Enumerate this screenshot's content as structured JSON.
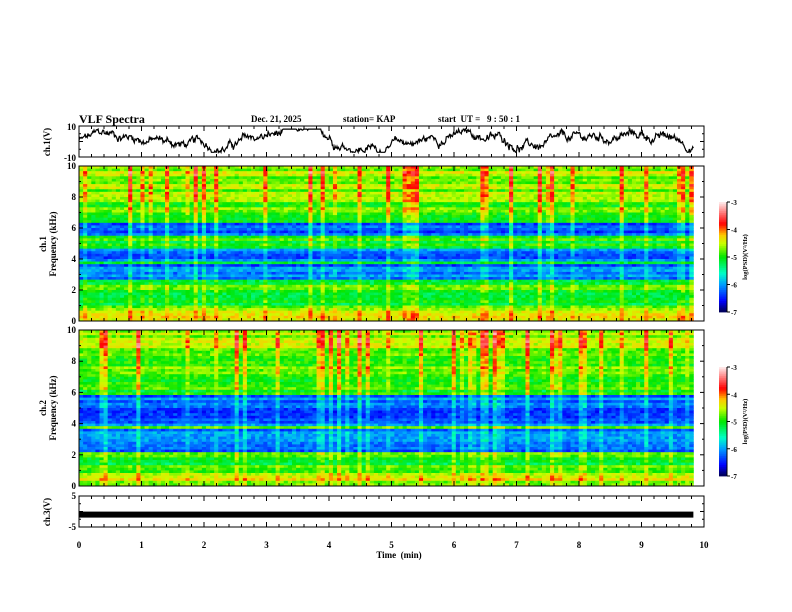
{
  "header": {
    "title": "VLF Spectra",
    "date": "Dec. 21, 2025",
    "station": "station= KAP",
    "start_ut": "start  UT =   9 : 50 : 1"
  },
  "chart_data": [
    {
      "type": "line",
      "name": "ch1-voltage",
      "ylabel": "ch.1(V)",
      "ylim": [
        -10,
        10
      ],
      "yticks": [
        "10",
        "-10"
      ],
      "xlim": [
        0,
        10
      ],
      "trace_end_min": 9.83,
      "trace_mean_v": 0.5,
      "trace_range_v": [
        -7,
        8
      ]
    },
    {
      "type": "heatmap",
      "name": "ch1-spectrogram",
      "channel_label": "ch.1",
      "ylabel": "Frequency  (kHz)",
      "ylim": [
        0,
        10
      ],
      "yticks": [
        "0",
        "2",
        "4",
        "6",
        "8",
        "10"
      ],
      "xlim": [
        0,
        10
      ],
      "data_end_min": 9.83,
      "colorbar": {
        "label": "log(PSD)(V²/Hz)",
        "range": [
          -7,
          -3
        ],
        "ticks": [
          "-3",
          "-4",
          "-5",
          "-6",
          "-7"
        ]
      },
      "low_power_bands_khz": [
        [
          2.6,
          3.6
        ],
        [
          3.8,
          4.7
        ],
        [
          5.5,
          6.4
        ]
      ]
    },
    {
      "type": "heatmap",
      "name": "ch2-spectrogram",
      "channel_label": "ch.2",
      "ylabel": "Frequency  (kHz)",
      "ylim": [
        0,
        10
      ],
      "yticks": [
        "0",
        "2",
        "4",
        "6",
        "8",
        "10"
      ],
      "xlim": [
        0,
        10
      ],
      "data_end_min": 9.83,
      "colorbar": {
        "label": "log(PSD)(V²/Hz)",
        "range": [
          -7,
          -3
        ],
        "ticks": [
          "-3",
          "-4",
          "-5",
          "-6",
          "-7"
        ]
      },
      "low_power_bands_khz": [
        [
          2.2,
          3.6
        ],
        [
          3.8,
          5.8
        ]
      ]
    },
    {
      "type": "line",
      "name": "ch3-voltage",
      "ylabel": "ch.3(V)",
      "ylim": [
        -5,
        5
      ],
      "yticks": [
        "5",
        "-5"
      ],
      "xlim": [
        0,
        10
      ],
      "trace_end_min": 9.83,
      "trace_value_v": -1.0
    }
  ],
  "xaxis": {
    "label": "Time  (min)",
    "ticks": [
      "0",
      "1",
      "2",
      "3",
      "4",
      "5",
      "6",
      "7",
      "8",
      "9",
      "10"
    ]
  }
}
